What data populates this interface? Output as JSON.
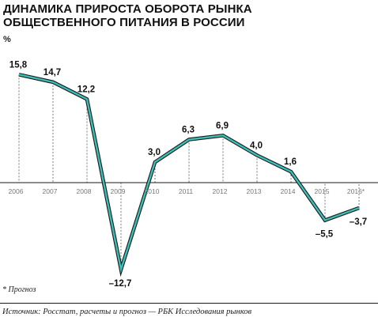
{
  "title_line1": "ДИНАМИКА ПРИРОСТА ОБОРОТА РЫНКА",
  "title_line2": "ОБЩЕСТВЕННОГО ПИТАНИЯ В РОССИИ",
  "unit_label": "%",
  "footnote": "* Прогноз",
  "source": "Источник: Росстат, расчеты и прогноз — РБК Исследования рынков",
  "chart_data": {
    "type": "line",
    "categories": [
      "2006",
      "2007",
      "2008",
      "2009",
      "2010",
      "2011",
      "2012",
      "2013",
      "2014",
      "2015",
      "2016*"
    ],
    "series": [
      {
        "values": [
          15.8,
          14.7,
          12.2,
          -12.7,
          3.0,
          6.3,
          6.9,
          4.0,
          1.6,
          -5.5,
          -3.7
        ]
      }
    ],
    "value_labels": [
      "15,8",
      "14,7",
      "12,2",
      "–12,7",
      "3,0",
      "6,3",
      "6,9",
      "4,0",
      "1,6",
      "–5,5",
      "–3,7"
    ],
    "forecast_from_index": 10,
    "ylabel": "%",
    "ylim": [
      -14,
      18
    ],
    "colors": {
      "line": "#3bbfb8",
      "line_outline": "#1a1a1a",
      "axis": "#1a1a1a",
      "tick_label": "#777777",
      "dash": "#555555"
    },
    "grid": false
  }
}
